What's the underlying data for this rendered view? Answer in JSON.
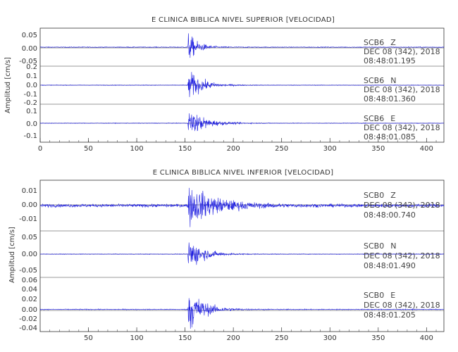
{
  "trace_color": "#1f1fe0",
  "axis_color": "#333333",
  "chart_data": [
    {
      "type": "line",
      "title": "E CLINICA BIBLICA NIVEL SUPERIOR [VELOCIDAD]",
      "xlabel": "",
      "ylabel": "Amplitud [cm/s]",
      "xlim": [
        0,
        418
      ],
      "xticks": [
        0,
        50,
        100,
        150,
        200,
        250,
        300,
        350,
        400
      ],
      "grid": false,
      "series": [
        {
          "station": "SCB6",
          "component": "Z",
          "date": "DEC 08 (342), 2018",
          "time": "08:48:01.195",
          "ylim": [
            -0.07,
            0.07
          ],
          "yticks": [
            "0.05",
            "0.00",
            "-0.05"
          ],
          "onset_s": 153,
          "peak_amplitude": 0.065,
          "noise_amplitude": 0.0015,
          "decay_s": 10
        },
        {
          "station": "SCB6",
          "component": "N",
          "date": "DEC 08 (342), 2018",
          "time": "08:48:01.360",
          "ylim": [
            -0.21,
            0.21
          ],
          "yticks": [
            "0.2",
            "0.1",
            "0.0",
            "-0.1",
            "-0.2"
          ],
          "onset_s": 153,
          "peak_amplitude": 0.21,
          "noise_amplitude": 0.004,
          "decay_s": 14
        },
        {
          "station": "SCB6",
          "component": "E",
          "date": "DEC 08 (342), 2018",
          "time": "08:48:01.085",
          "ylim": [
            -0.16,
            0.16
          ],
          "yticks": [
            "0.1",
            "0.0",
            "-0.1"
          ],
          "onset_s": 153,
          "peak_amplitude": 0.15,
          "noise_amplitude": 0.003,
          "decay_s": 16
        }
      ]
    },
    {
      "type": "line",
      "title": "E CLINICA BIBLICA NIVEL INFERIOR [VELOCIDAD]",
      "xlabel": "",
      "ylabel": "Amplitud [cm/s]",
      "xlim": [
        0,
        418
      ],
      "xticks": [
        50,
        100,
        150,
        200,
        250,
        300,
        350,
        400
      ],
      "grid": false,
      "series": [
        {
          "station": "SCB0",
          "component": "Z",
          "date": "DEC 08 (342), 2018",
          "time": "08:48:00.740",
          "ylim": [
            -0.017,
            0.017
          ],
          "yticks": [
            "0.01",
            "0.00",
            "-0.01"
          ],
          "onset_s": 153,
          "peak_amplitude": 0.016,
          "noise_amplitude": 0.0012,
          "decay_s": 28
        },
        {
          "station": "SCB0",
          "component": "N",
          "date": "DEC 08 (342), 2018",
          "time": "08:48:01.490",
          "ylim": [
            -0.09,
            0.09
          ],
          "yticks": [
            "0.05",
            "0.00",
            "-0.05"
          ],
          "onset_s": 153,
          "peak_amplitude": 0.085,
          "noise_amplitude": 0.0015,
          "decay_s": 14
        },
        {
          "station": "SCB0",
          "component": "E",
          "date": "DEC 08 (342), 2018",
          "time": "08:48:01.205",
          "ylim": [
            -0.045,
            0.065
          ],
          "yticks": [
            "0.06",
            "0.04",
            "0.02",
            "0.00",
            "-0.02",
            "-0.04"
          ],
          "onset_s": 153,
          "peak_amplitude": 0.06,
          "noise_amplitude": 0.001,
          "decay_s": 14
        }
      ]
    }
  ]
}
